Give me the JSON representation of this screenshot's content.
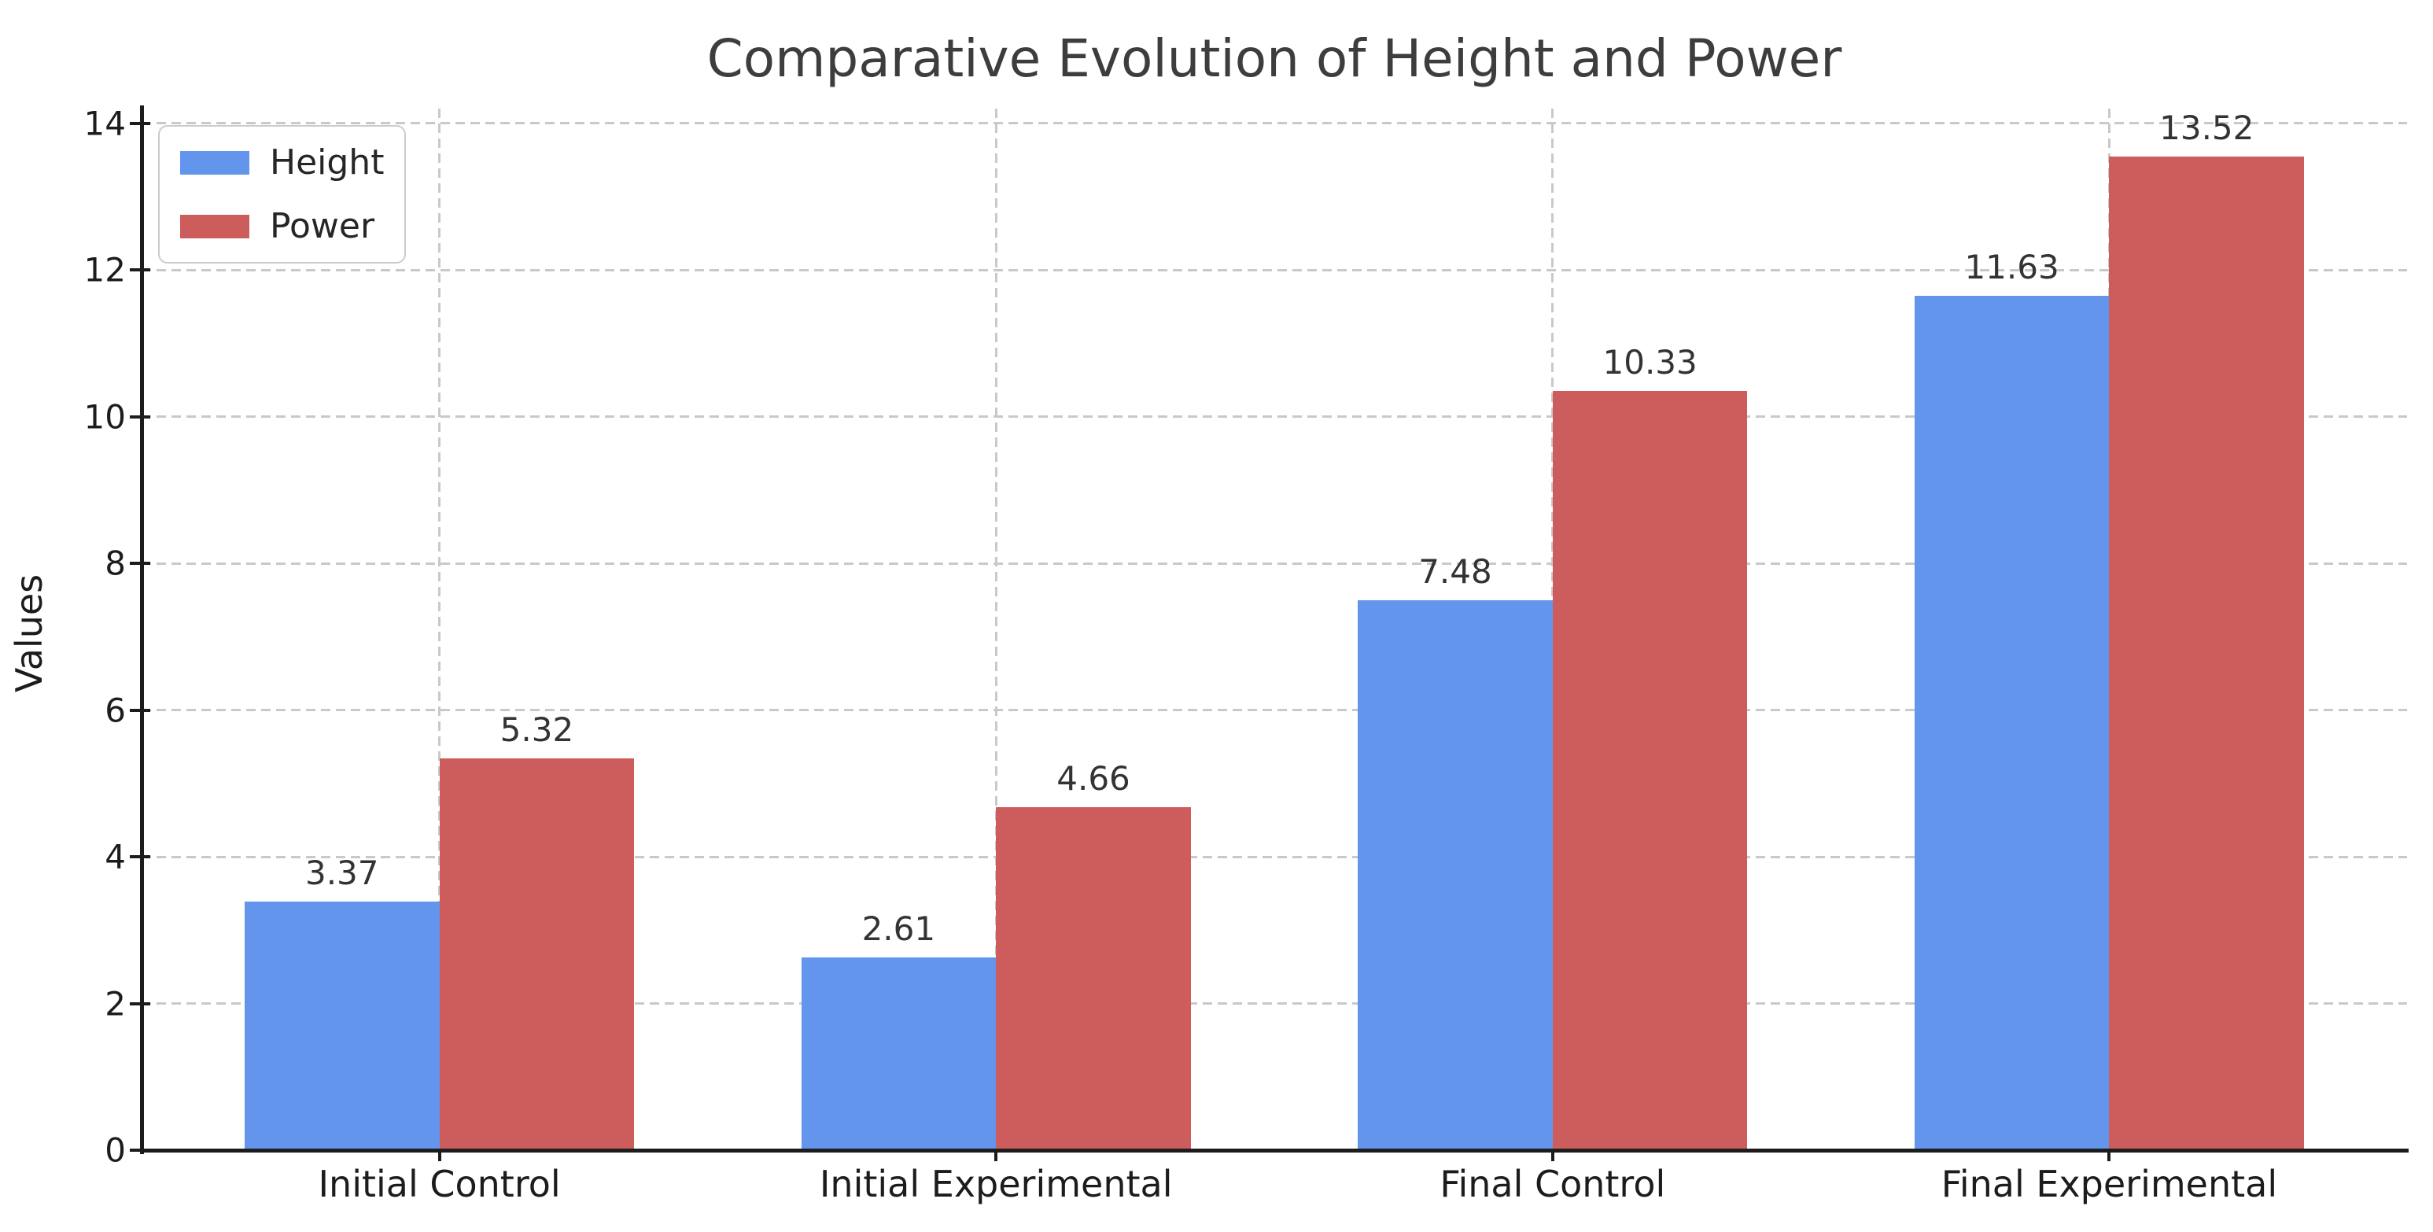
{
  "chart_data": {
    "type": "bar",
    "title": "Comparative Evolution of Height and Power",
    "xlabel": "",
    "ylabel": "Values",
    "categories": [
      "Initial Control",
      "Initial Experimental",
      "Final Control",
      "Final Experimental"
    ],
    "series": [
      {
        "name": "Height",
        "color": "#6495ed",
        "values": [
          3.37,
          2.61,
          7.48,
          11.63
        ],
        "labels": [
          "3.37",
          "2.61",
          "7.48",
          "11.63"
        ]
      },
      {
        "name": "Power",
        "color": "#cd5c5c",
        "values": [
          5.32,
          4.66,
          10.33,
          13.52
        ],
        "labels": [
          "5.32",
          "4.66",
          "10.33",
          "13.52"
        ]
      }
    ],
    "yticks": [
      0,
      2,
      4,
      6,
      8,
      10,
      12,
      14
    ],
    "ytick_labels": [
      "0",
      "2",
      "4",
      "6",
      "8",
      "10",
      "12",
      "14"
    ],
    "ylim": [
      0,
      14.2
    ],
    "xlim_units": [
      -0.535,
      3.535
    ],
    "bar_width_units": 0.35,
    "grid": "dashed, horizontal and vertical",
    "legend_position": "upper left",
    "colors": {
      "grid": "#c9c9c9",
      "spine": "#1c1c1c",
      "title_text": "#3d3d3d",
      "tick_text": "#1c1c1c",
      "value_label_text": "#333333",
      "legend_border": "#cccccc"
    }
  }
}
